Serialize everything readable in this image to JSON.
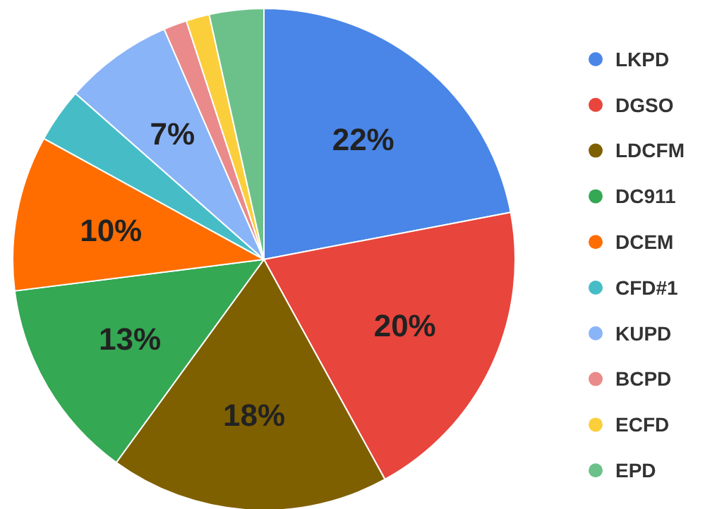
{
  "chart_data": {
    "type": "pie",
    "categories": [
      "LKPD",
      "DGSO",
      "LDCFM",
      "DC911",
      "DCEM",
      "CFD#1",
      "KUPD",
      "BCPD",
      "ECFD",
      "EPD"
    ],
    "values": [
      22,
      20,
      18,
      13,
      10,
      3.5,
      7,
      1.5,
      1.5,
      3.5
    ],
    "colors": [
      "#4a86e8",
      "#e8453c",
      "#7f6000",
      "#34a853",
      "#ff6d01",
      "#46bdc6",
      "#8ab4f8",
      "#ea8a8a",
      "#fbcf3b",
      "#6cc18a"
    ],
    "value_labels": [
      "22%",
      "20%",
      "18%",
      "13%",
      "10%",
      null,
      "7%",
      null,
      null,
      null
    ],
    "legend": "right"
  }
}
